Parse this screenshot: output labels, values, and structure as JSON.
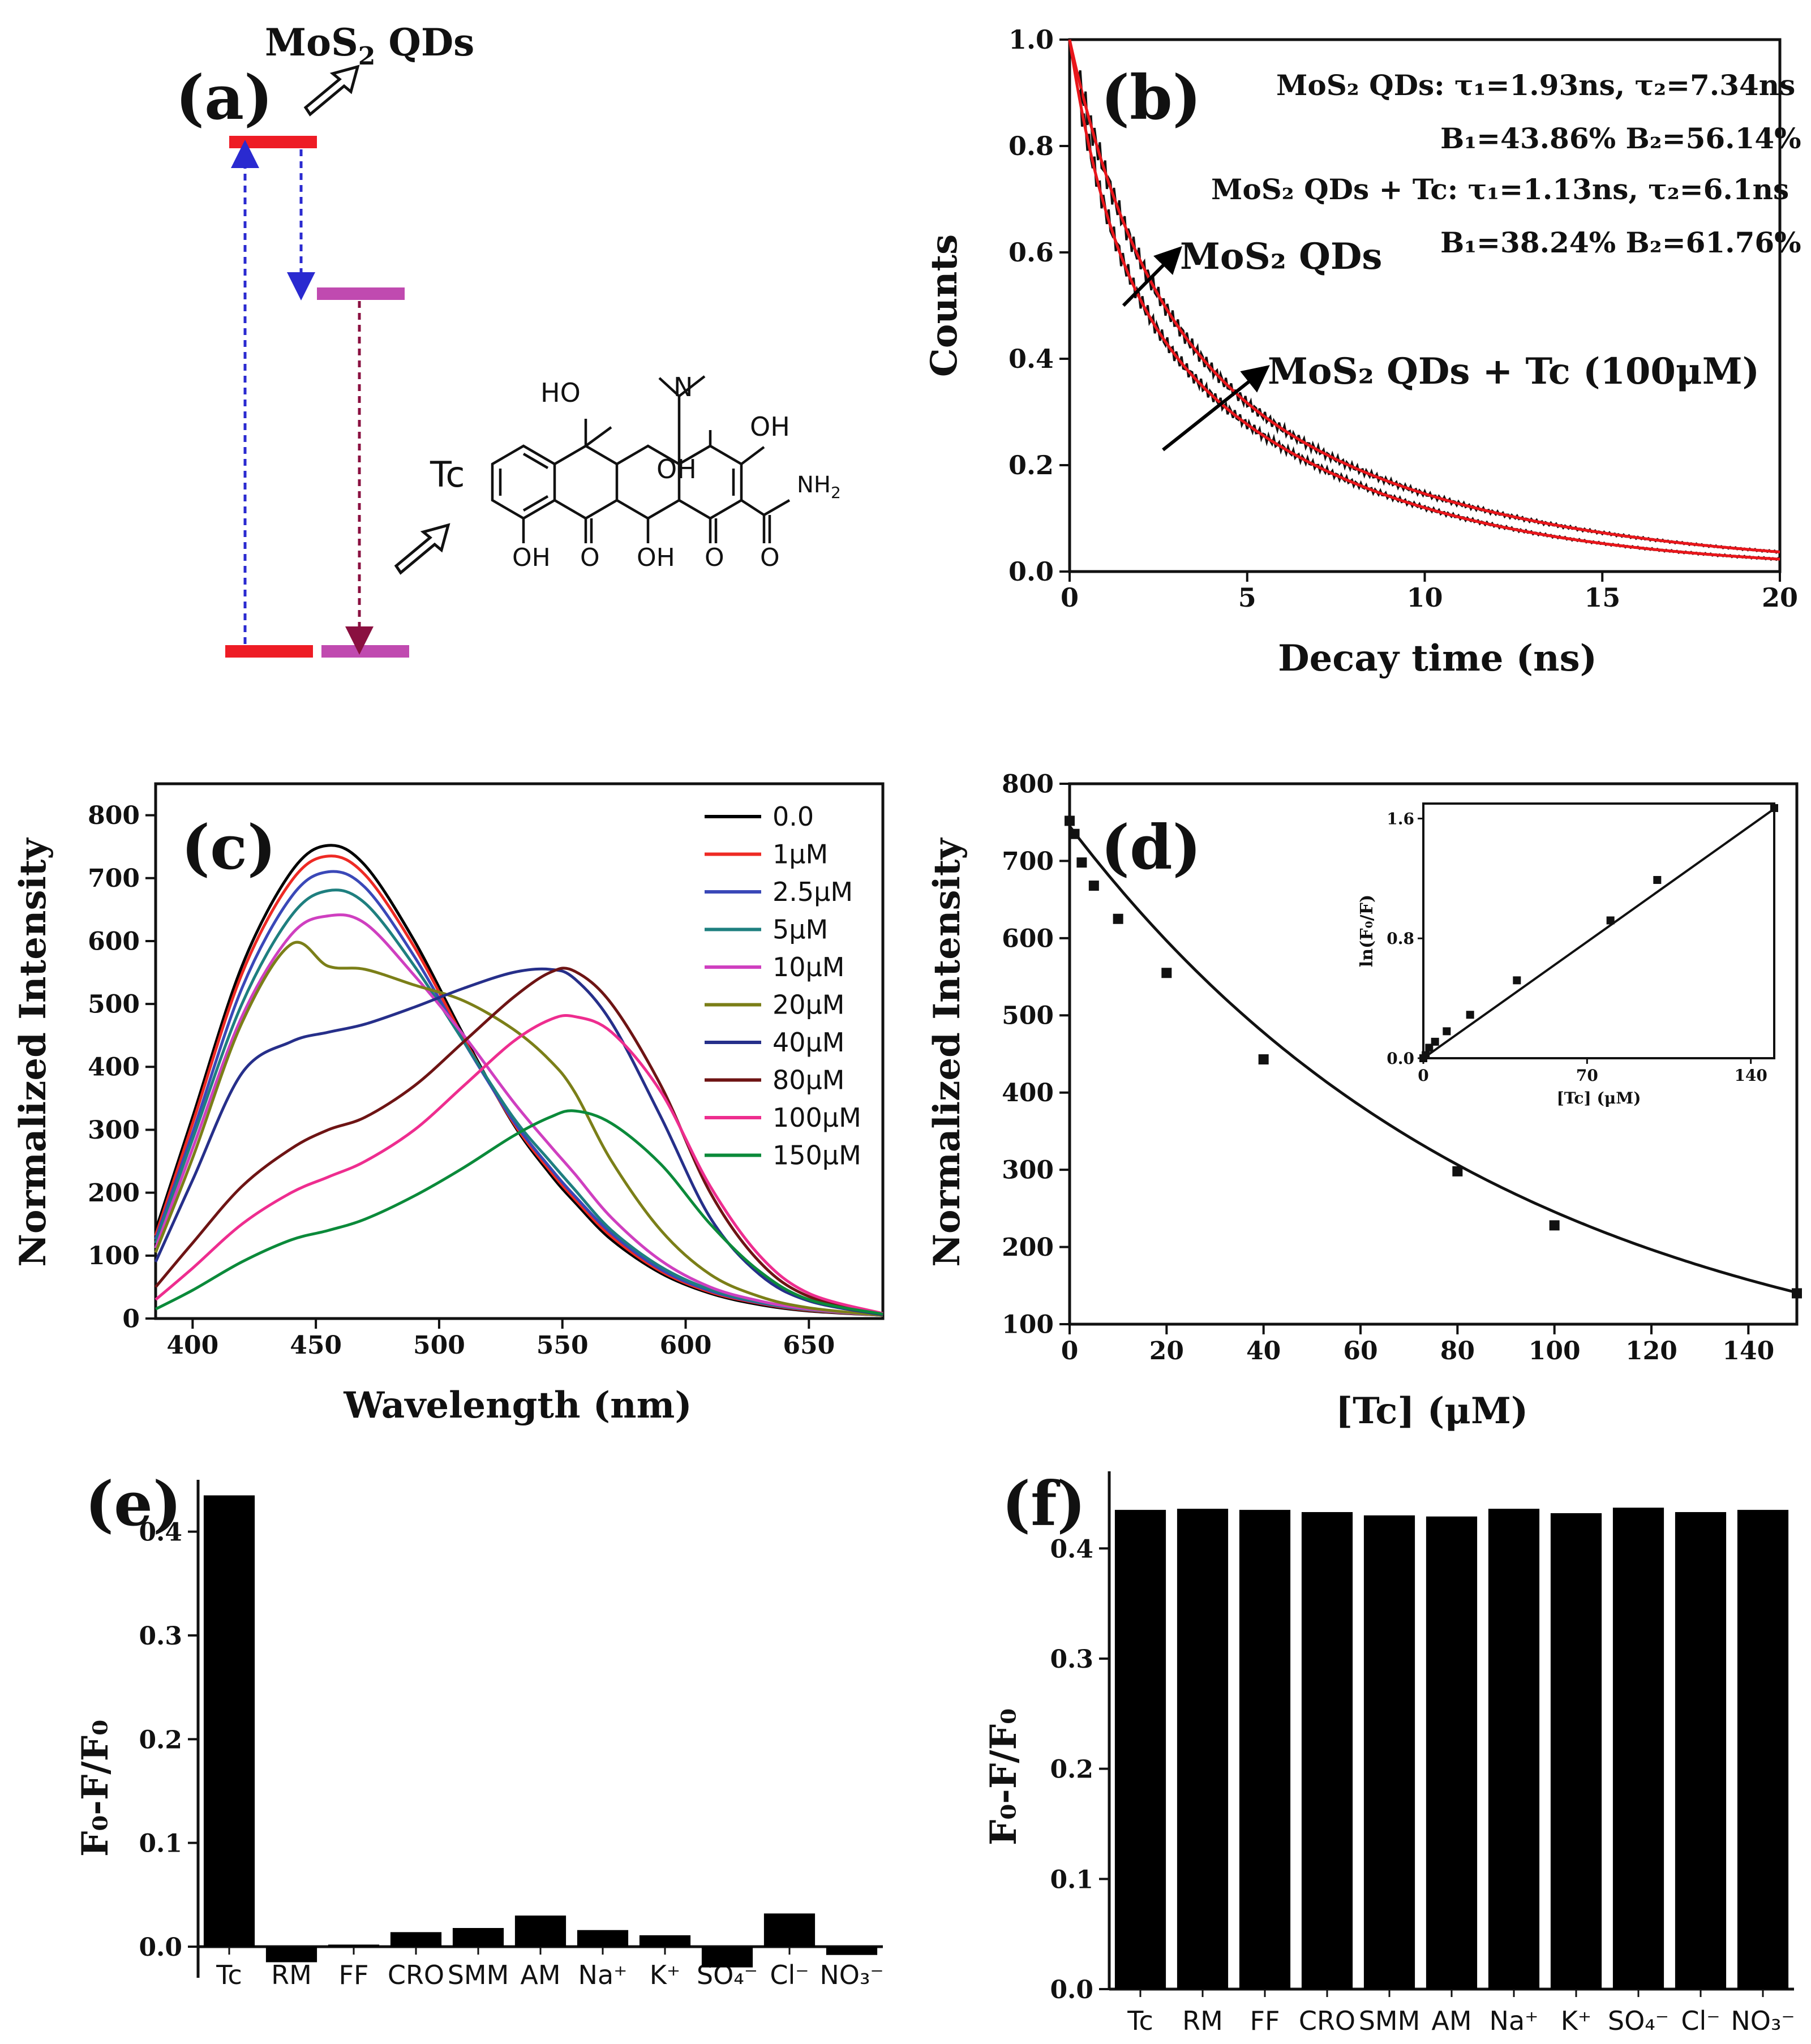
{
  "panels": {
    "a": {
      "label": "(a)",
      "mos2_label": "MoS",
      "mos2_sub": "2",
      "mos2_suffix": " QDs",
      "tc_label": "Tc",
      "molecule": {
        "ho": "HO",
        "n": "N",
        "oh_right": "OH",
        "oh_mid": "OH",
        "nh2": "NH",
        "nh2_sub": "2",
        "oh1": "OH",
        "o1": "O",
        "oh2": "OH",
        "o2": "O",
        "o3": "O"
      },
      "colors": {
        "red": "#ee1c25",
        "magenta": "#c04ab0",
        "blue_arrow": "#2a2ad0",
        "dark_red_arrow": "#8a1040"
      }
    },
    "b": {
      "label": "(b)",
      "annotations": {
        "line1": "MoS₂ QDs: τ₁=1.93ns,   τ₂=7.34ns",
        "line2": "B₁=43.86% B₂=56.14%",
        "line3": "MoS₂ QDs + Tc: τ₁=1.13ns,   τ₂=6.1ns",
        "line4": "B₁=38.24% B₂=61.76%",
        "curve1": "MoS₂ QDs",
        "curve2": "MoS₂ QDs + Tc (100μM)"
      }
    },
    "c": {
      "label": "(c)"
    },
    "d": {
      "label": "(d)"
    },
    "e": {
      "label": "(e)"
    },
    "f": {
      "label": "(f)"
    }
  },
  "chart_data": [
    {
      "id": "b",
      "type": "line",
      "title": "",
      "xlabel": "Decay time (ns)",
      "ylabel": "Counts",
      "xlim": [
        0,
        20
      ],
      "ylim": [
        0,
        1.0
      ],
      "xticks": [
        "0",
        "5",
        "10",
        "15",
        "20"
      ],
      "yticks": [
        "0.0",
        "0.2",
        "0.4",
        "0.6",
        "0.8",
        "1.0"
      ],
      "series": [
        {
          "name": "MoS₂ QDs",
          "model": "biexp",
          "tau1": 1.93,
          "tau2": 7.34,
          "B1": 43.86,
          "B2": 56.14,
          "color": "#e8161b"
        },
        {
          "name": "MoS₂ QDs + Tc (100μM)",
          "model": "biexp",
          "tau1": 1.13,
          "tau2": 6.1,
          "B1": 38.24,
          "B2": 61.76,
          "color": "#e8161b"
        }
      ]
    },
    {
      "id": "c",
      "type": "line",
      "xlabel": "Wavelength (nm)",
      "ylabel": "Normalized Intensity",
      "xlim": [
        385,
        680
      ],
      "ylim": [
        0,
        850
      ],
      "xticks": [
        "400",
        "450",
        "500",
        "550",
        "600",
        "650"
      ],
      "yticks": [
        "0",
        "100",
        "200",
        "300",
        "400",
        "500",
        "600",
        "700",
        "800"
      ],
      "x": [
        385,
        400,
        420,
        440,
        455,
        470,
        490,
        510,
        530,
        545,
        555,
        570,
        590,
        610,
        630,
        650,
        680
      ],
      "series": [
        {
          "name": "0.0",
          "color": "#000000",
          "values": [
            140,
            320,
            560,
            710,
            752,
            720,
            600,
            450,
            310,
            230,
            185,
            125,
            72,
            40,
            22,
            12,
            5
          ]
        },
        {
          "name": "1μM",
          "color": "#ee2a24",
          "values": [
            132,
            310,
            548,
            695,
            735,
            705,
            590,
            445,
            312,
            235,
            190,
            130,
            75,
            42,
            24,
            13,
            5
          ]
        },
        {
          "name": "2.5μM",
          "color": "#3a48b8",
          "values": [
            126,
            295,
            525,
            670,
            710,
            685,
            575,
            440,
            315,
            240,
            195,
            135,
            78,
            44,
            25,
            14,
            5
          ]
        },
        {
          "name": "5μM",
          "color": "#1e7f7f",
          "values": [
            120,
            285,
            500,
            640,
            680,
            660,
            560,
            440,
            320,
            250,
            205,
            140,
            82,
            46,
            26,
            14,
            5
          ]
        },
        {
          "name": "10μM",
          "color": "#cf3fc0",
          "values": [
            112,
            270,
            480,
            610,
            640,
            628,
            545,
            450,
            345,
            275,
            230,
            160,
            92,
            50,
            28,
            15,
            5
          ]
        },
        {
          "name": "20μM",
          "color": "#7b7f18",
          "values": [
            105,
            255,
            470,
            595,
            560,
            555,
            530,
            505,
            460,
            410,
            360,
            250,
            140,
            70,
            35,
            17,
            5
          ]
        },
        {
          "name": "40μM",
          "color": "#262f8a",
          "values": [
            90,
            220,
            390,
            440,
            455,
            468,
            495,
            525,
            550,
            555,
            540,
            470,
            320,
            160,
            70,
            28,
            6
          ]
        },
        {
          "name": "80μM",
          "color": "#6e1414",
          "values": [
            50,
            120,
            210,
            270,
            300,
            320,
            370,
            440,
            510,
            550,
            552,
            500,
            370,
            200,
            90,
            35,
            7
          ]
        },
        {
          "name": "100μM",
          "color": "#ee2d8f",
          "values": [
            30,
            80,
            150,
            200,
            225,
            250,
            300,
            370,
            440,
            475,
            480,
            455,
            360,
            210,
            100,
            40,
            8
          ]
        },
        {
          "name": "150μM",
          "color": "#0b8a3a",
          "values": [
            15,
            45,
            90,
            125,
            140,
            158,
            195,
            240,
            290,
            320,
            330,
            310,
            245,
            150,
            75,
            30,
            7
          ]
        }
      ]
    },
    {
      "id": "d",
      "type": "scatter",
      "xlabel": "[Tc] (μM)",
      "ylabel": "Normalized Intensity",
      "xlim": [
        0,
        150
      ],
      "ylim": [
        100,
        800
      ],
      "xticks": [
        "0",
        "20",
        "40",
        "60",
        "80",
        "100",
        "120",
        "140"
      ],
      "yticks": [
        "100",
        "200",
        "300",
        "400",
        "500",
        "600",
        "700",
        "800"
      ],
      "x": [
        0,
        1,
        2.5,
        5,
        10,
        20,
        40,
        80,
        100,
        150
      ],
      "y": [
        752,
        735,
        698,
        668,
        625,
        555,
        443,
        298,
        228,
        140
      ],
      "fit": {
        "model": "F = F0*exp(-k*C)",
        "F0": 745,
        "k": 0.0111
      },
      "inset": {
        "type": "scatter",
        "xlabel": "[Tc] (μM)",
        "ylabel": "ln(F₀/F)",
        "xlim": [
          0,
          150
        ],
        "ylim": [
          0,
          1.7
        ],
        "xticks": [
          "0",
          "70",
          "140"
        ],
        "yticks": [
          "0.0",
          "0.8",
          "1.6"
        ],
        "x": [
          0,
          1,
          2.5,
          5,
          10,
          20,
          40,
          80,
          100,
          150
        ],
        "y": [
          0.0,
          0.02,
          0.07,
          0.11,
          0.18,
          0.29,
          0.52,
          0.92,
          1.19,
          1.67
        ],
        "fit": {
          "slope": 0.0111,
          "intercept": 0.0
        }
      }
    },
    {
      "id": "e",
      "type": "bar",
      "xlabel": "",
      "ylabel": "F₀-F/F₀",
      "ylim": [
        -0.03,
        0.45
      ],
      "yticks": [
        "0.0",
        "0.1",
        "0.2",
        "0.3",
        "0.4"
      ],
      "categories": [
        "Tc",
        "RM",
        "FF",
        "CRO",
        "SMM",
        "AM",
        "Na⁺",
        "K⁺",
        "SO₄⁻",
        "Cl⁻",
        "NO₃⁻"
      ],
      "values": [
        0.435,
        -0.015,
        0.002,
        0.014,
        0.018,
        0.03,
        0.016,
        0.011,
        -0.02,
        0.032,
        -0.008
      ]
    },
    {
      "id": "f",
      "type": "bar",
      "xlabel": "",
      "ylabel": "F₀-F/F₀",
      "ylim": [
        0,
        0.47
      ],
      "yticks": [
        "0.0",
        "0.1",
        "0.2",
        "0.3",
        "0.4"
      ],
      "categories": [
        "Tc",
        "RM",
        "FF",
        "CRO",
        "SMM",
        "AM",
        "Na⁺",
        "K⁺",
        "SO₄⁻",
        "Cl⁻",
        "NO₃⁻"
      ],
      "values": [
        0.435,
        0.436,
        0.435,
        0.433,
        0.43,
        0.429,
        0.436,
        0.432,
        0.437,
        0.433,
        0.435
      ]
    }
  ]
}
